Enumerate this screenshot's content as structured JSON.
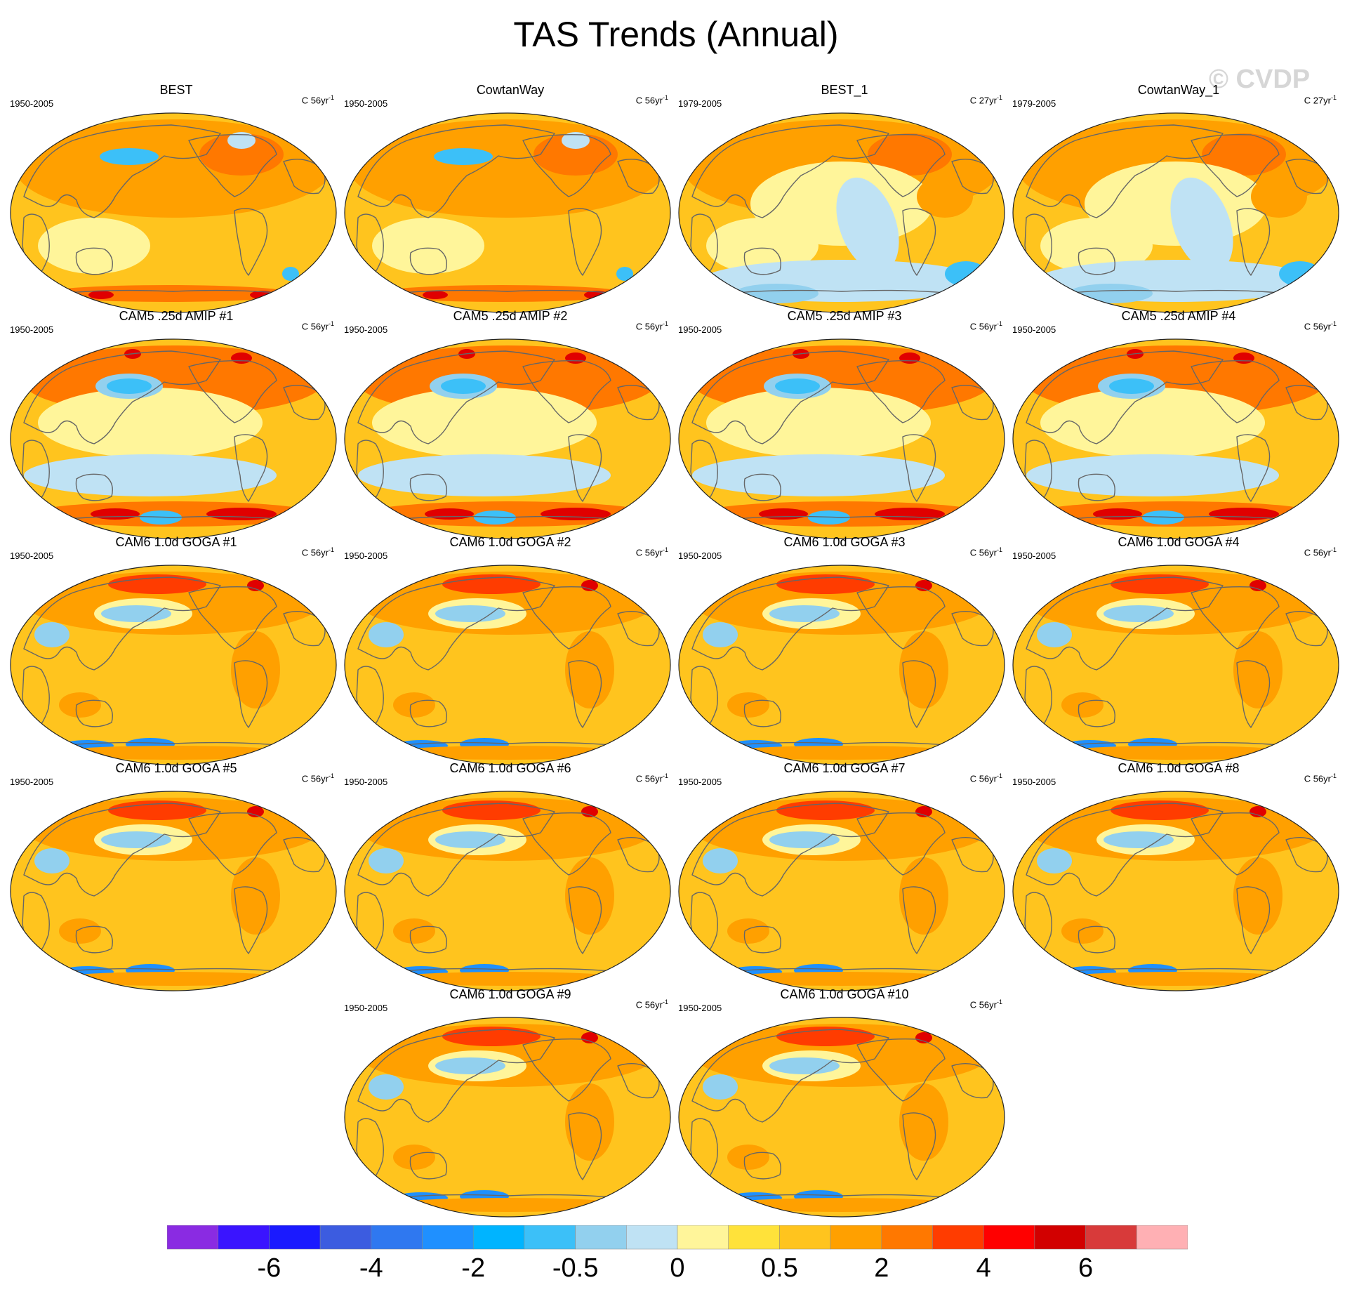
{
  "title": "TAS Trends (Annual)",
  "watermark": "© CVDP",
  "panels": [
    {
      "name": "BEST",
      "period": "1950-2005",
      "units_base": "C 56yr",
      "units_exp": "-1",
      "pattern": "obs"
    },
    {
      "name": "CowtanWay",
      "period": "1950-2005",
      "units_base": "C 56yr",
      "units_exp": "-1",
      "pattern": "obs"
    },
    {
      "name": "BEST_1",
      "period": "1979-2005",
      "units_base": "C 27yr",
      "units_exp": "-1",
      "pattern": "obs27"
    },
    {
      "name": "CowtanWay_1",
      "period": "1979-2005",
      "units_base": "C 27yr",
      "units_exp": "-1",
      "pattern": "obs27"
    },
    {
      "name": "CAM5 .25d AMIP #1",
      "period": "1950-2005",
      "units_base": "C 56yr",
      "units_exp": "-1",
      "pattern": "amip"
    },
    {
      "name": "CAM5 .25d AMIP #2",
      "period": "1950-2005",
      "units_base": "C 56yr",
      "units_exp": "-1",
      "pattern": "amip"
    },
    {
      "name": "CAM5 .25d AMIP #3",
      "period": "1950-2005",
      "units_base": "C 56yr",
      "units_exp": "-1",
      "pattern": "amip"
    },
    {
      "name": "CAM5 .25d AMIP #4",
      "period": "1950-2005",
      "units_base": "C 56yr",
      "units_exp": "-1",
      "pattern": "amip"
    },
    {
      "name": "CAM6 1.0d GOGA #1",
      "period": "1950-2005",
      "units_base": "C 56yr",
      "units_exp": "-1",
      "pattern": "goga"
    },
    {
      "name": "CAM6 1.0d GOGA #2",
      "period": "1950-2005",
      "units_base": "C 56yr",
      "units_exp": "-1",
      "pattern": "goga"
    },
    {
      "name": "CAM6 1.0d GOGA #3",
      "period": "1950-2005",
      "units_base": "C 56yr",
      "units_exp": "-1",
      "pattern": "goga"
    },
    {
      "name": "CAM6 1.0d GOGA #4",
      "period": "1950-2005",
      "units_base": "C 56yr",
      "units_exp": "-1",
      "pattern": "goga"
    },
    {
      "name": "CAM6 1.0d GOGA #5",
      "period": "1950-2005",
      "units_base": "C 56yr",
      "units_exp": "-1",
      "pattern": "goga"
    },
    {
      "name": "CAM6 1.0d GOGA #6",
      "period": "1950-2005",
      "units_base": "C 56yr",
      "units_exp": "-1",
      "pattern": "goga"
    },
    {
      "name": "CAM6 1.0d GOGA #7",
      "period": "1950-2005",
      "units_base": "C 56yr",
      "units_exp": "-1",
      "pattern": "goga"
    },
    {
      "name": "CAM6 1.0d GOGA #8",
      "period": "1950-2005",
      "units_base": "C 56yr",
      "units_exp": "-1",
      "pattern": "goga"
    },
    {
      "name": "CAM6 1.0d GOGA #9",
      "period": "1950-2005",
      "units_base": "C 56yr",
      "units_exp": "-1",
      "pattern": "goga"
    },
    {
      "name": "CAM6 1.0d GOGA #10",
      "period": "1950-2005",
      "units_base": "C 56yr",
      "units_exp": "-1",
      "pattern": "goga"
    }
  ],
  "colorbar": {
    "colors": [
      "#8a2be2",
      "#3a14ff",
      "#1a1aff",
      "#3c5ce0",
      "#2f78f0",
      "#1f90ff",
      "#00b4ff",
      "#3cc0f8",
      "#92d0ee",
      "#bfe2f4",
      "#fff59a",
      "#ffe23a",
      "#ffc41e",
      "#ffa000",
      "#ff7800",
      "#ff3c00",
      "#ff0000",
      "#d20000",
      "#d83a3a",
      "#ffb0b4"
    ],
    "labels": [
      "-6",
      "-4",
      "-2",
      "-0.5",
      "0",
      "0.5",
      "2",
      "4",
      "6"
    ]
  },
  "palette": {
    "coast": "#666666",
    "warm_base": "#ffc41e",
    "warm_mid": "#ffa000",
    "warm_high": "#ff7800",
    "hot": "#ff3c00",
    "very_hot": "#e00000",
    "pale": "#fff59a",
    "cool_light": "#bfe2f4",
    "cool": "#92d0ee",
    "cool_strong": "#3cc0f8",
    "cold": "#1f90ff"
  }
}
